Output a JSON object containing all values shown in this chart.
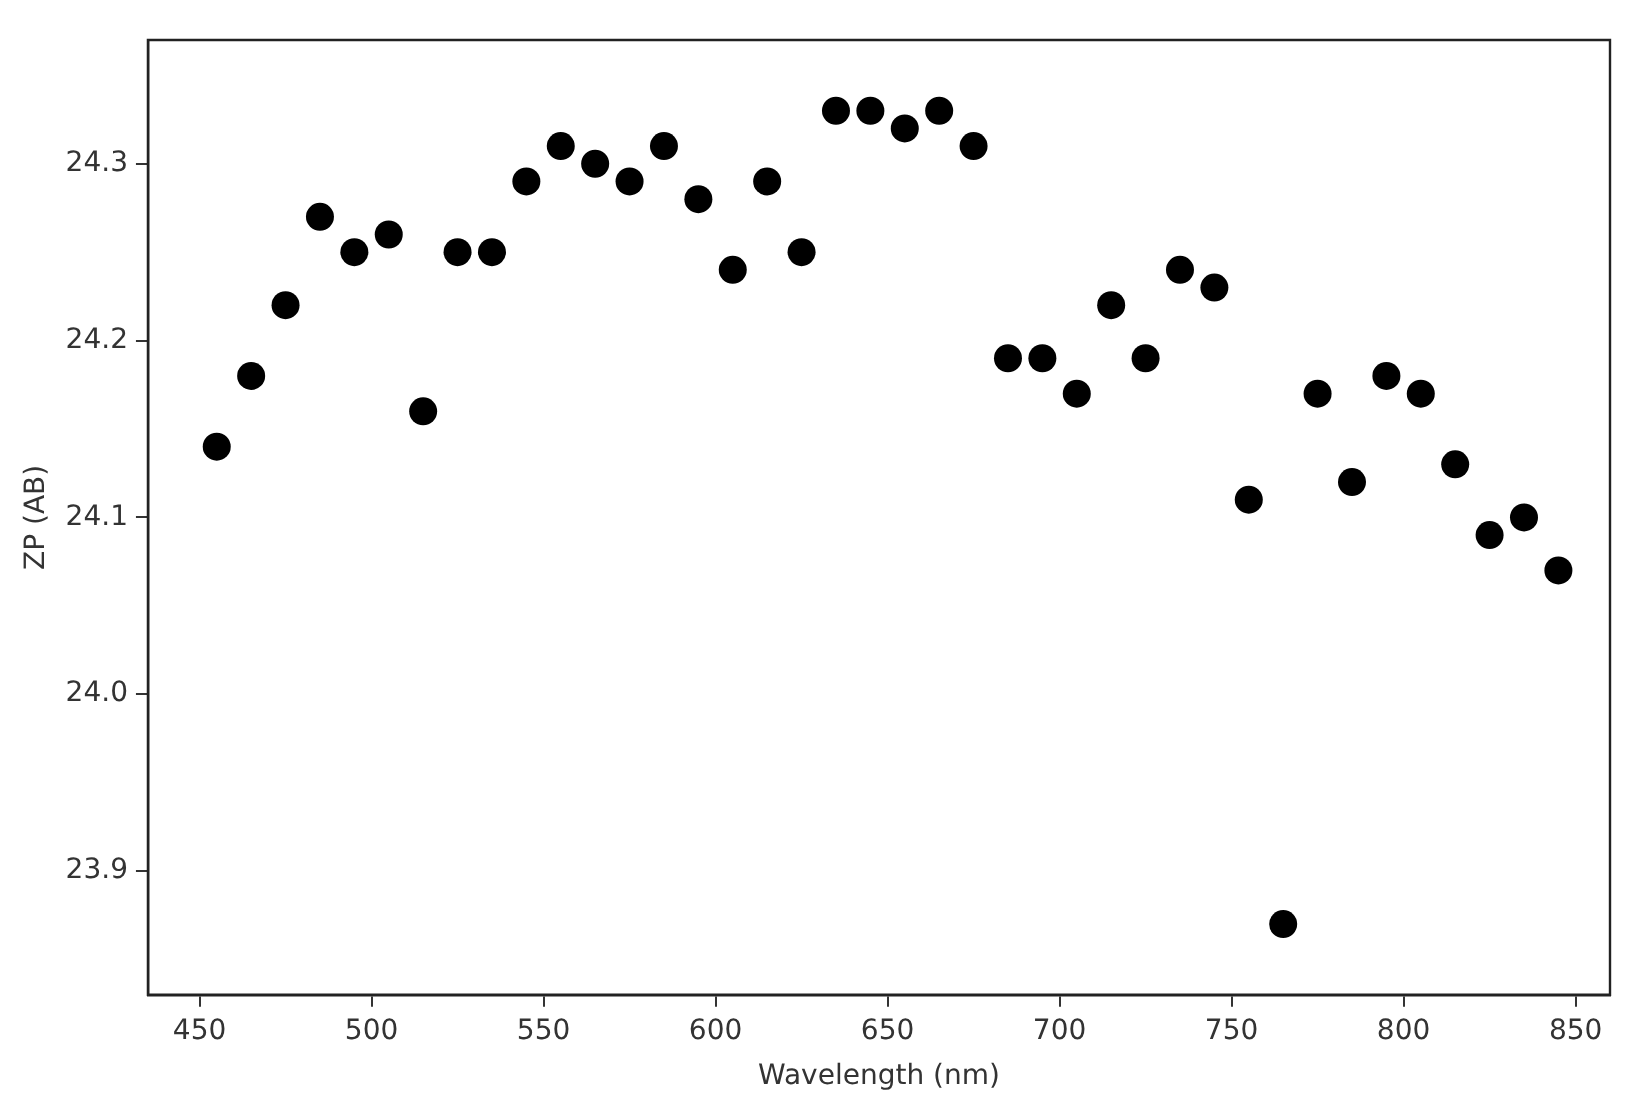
{
  "chart_data": {
    "type": "scatter",
    "xlabel": "Wavelength (nm)",
    "ylabel": "ZP (AB)",
    "x": [
      455,
      465,
      475,
      485,
      495,
      505,
      515,
      525,
      535,
      545,
      555,
      565,
      575,
      585,
      595,
      605,
      615,
      625,
      635,
      645,
      655,
      665,
      675,
      685,
      695,
      705,
      715,
      725,
      735,
      745,
      755,
      765,
      775,
      785,
      795,
      805,
      815,
      825,
      835,
      845
    ],
    "series": [
      {
        "color": "#000000",
        "values": [
          24.14,
          24.18,
          24.22,
          24.27,
          24.25,
          24.26,
          24.16,
          24.25,
          24.25,
          24.29,
          24.31,
          24.3,
          24.29,
          24.31,
          24.28,
          24.24,
          24.29,
          24.25,
          24.33,
          24.33,
          24.32,
          24.33,
          24.31,
          24.19,
          24.19,
          24.17,
          24.22,
          24.19,
          24.24,
          24.23,
          24.11,
          23.87,
          24.17,
          24.12,
          24.18,
          24.17,
          24.13,
          24.09,
          24.1,
          24.07
        ]
      }
    ],
    "xlim": [
      435,
      860
    ],
    "ylim": [
      23.83,
      24.37
    ],
    "xticks": [
      450,
      500,
      550,
      600,
      650,
      700,
      750,
      800,
      850
    ],
    "yticks": [
      {
        "value": 23.9,
        "label": "23.9"
      },
      {
        "value": 24.0,
        "label": "24.0"
      },
      {
        "value": 24.1,
        "label": "24.1"
      },
      {
        "value": 24.2,
        "label": "24.2"
      },
      {
        "value": 24.3,
        "label": "24.3"
      }
    ],
    "marker": "circle",
    "grid": false,
    "legend": false
  }
}
